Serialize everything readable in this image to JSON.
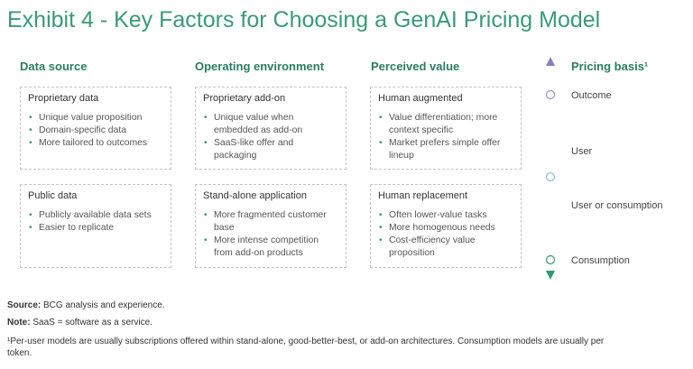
{
  "title": "Exhibit 4 - Key Factors for Choosing a GenAI Pricing Model",
  "columns": [
    {
      "header": "Data source",
      "boxes": [
        {
          "title": "Proprietary data",
          "bullets": [
            "Unique value proposition",
            "Domain-specific data",
            "More tailored to outcomes"
          ]
        },
        {
          "title": "Public data",
          "bullets": [
            "Publicly available data sets",
            "Easier to replicate"
          ]
        }
      ]
    },
    {
      "header": "Operating environment",
      "boxes": [
        {
          "title": "Proprietary add-on",
          "bullets": [
            "Unique value when",
            "embedded as add-on",
            "SaaS-like offer and packaging"
          ]
        },
        {
          "title": "Stand-alone application",
          "bullets": [
            "More fragmented customer",
            "base",
            "More intense competition",
            "from add-on products"
          ]
        }
      ]
    },
    {
      "header": "Perceived value",
      "boxes": [
        {
          "title": "Human augmented",
          "bullets": [
            "Value differentiation; more",
            "context specific",
            "Market prefers simple offer",
            "lineup"
          ]
        },
        {
          "title": "Human replacement",
          "bullets": [
            "Often lower-value tasks",
            "More homogenous needs",
            "Cost-efficiency value",
            "proposition"
          ]
        }
      ]
    }
  ],
  "pricing_basis": {
    "header": "Pricing basis¹",
    "levels": [
      "Outcome",
      "User",
      "User or consumption",
      "Consumption"
    ],
    "colors": {
      "top": "#8a7fb8",
      "mid": "#7fb6cf",
      "bottom": "#2f9a6e"
    }
  },
  "footnotes": {
    "source_label": "Source:",
    "source_text": " BCG analysis and experience.",
    "note_label": "Note:",
    "note_text": " SaaS = software as a service.",
    "footnote_line1": "¹Per-user models are usually subscriptions offered within stand-alone, good-better-best, or add-on architectures. Consumption models are usually per",
    "footnote_line2": "token."
  }
}
